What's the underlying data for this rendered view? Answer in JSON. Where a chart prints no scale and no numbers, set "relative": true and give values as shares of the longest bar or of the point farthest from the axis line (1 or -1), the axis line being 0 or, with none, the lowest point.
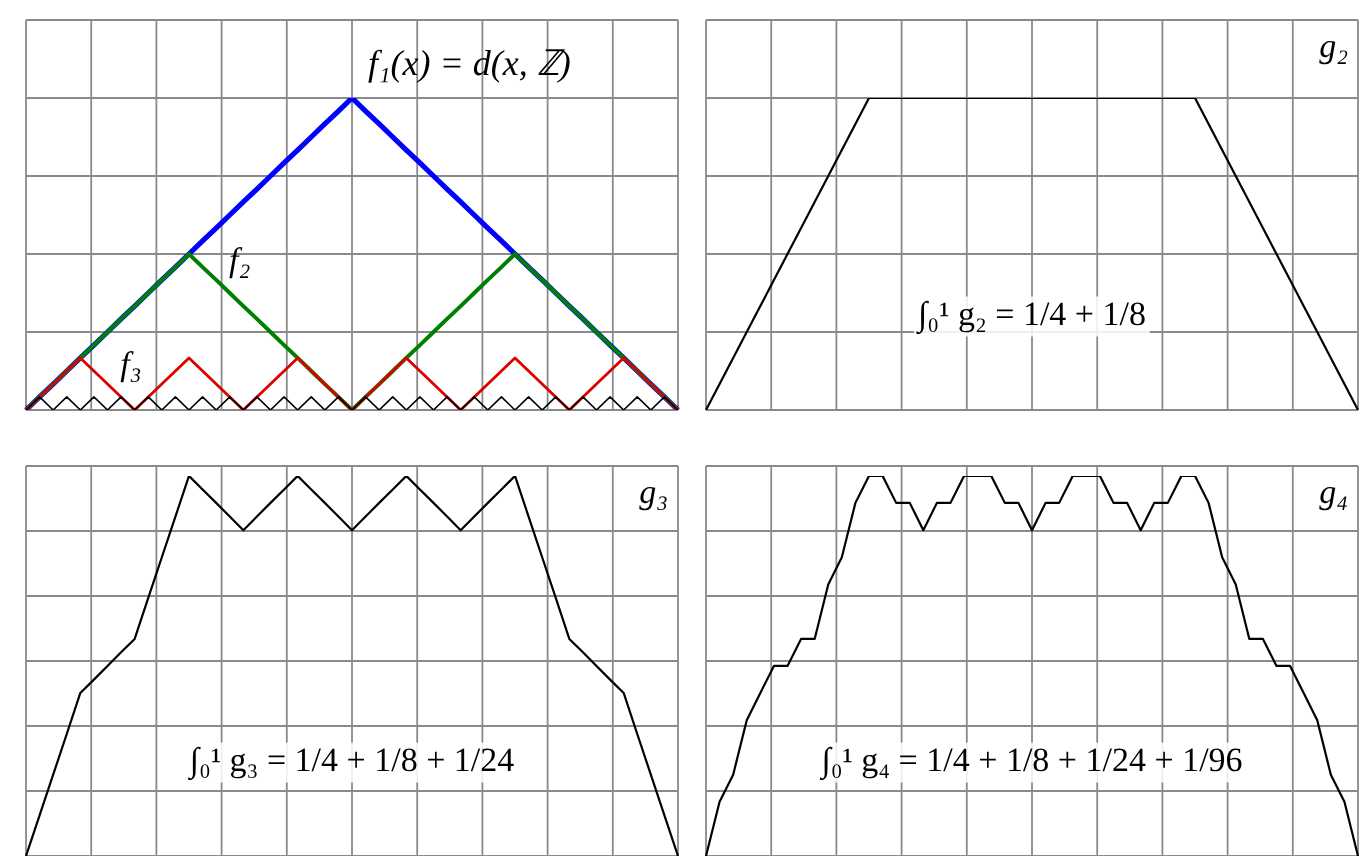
{
  "chart_data": [
    {
      "type": "line",
      "relative": true,
      "grid": true,
      "categories": [
        null,
        null,
        null,
        null,
        null,
        null,
        null,
        null,
        null,
        null,
        null,
        null,
        null,
        null,
        null,
        null,
        null,
        null,
        null,
        null,
        null,
        null,
        null,
        null,
        null,
        null,
        null,
        null,
        null,
        null,
        null,
        null,
        null,
        null,
        null,
        null,
        null,
        null,
        null,
        null,
        null,
        null,
        null,
        null,
        null,
        null,
        null,
        null,
        null
      ],
      "series": [
        {
          "name": "f₁(x) = d(x, ℤ)",
          "color": "#0000ff",
          "values": [
            0,
            0.042,
            0.083,
            0.125,
            0.167,
            0.208,
            0.25,
            0.292,
            0.333,
            0.375,
            0.417,
            0.458,
            0.5,
            0.542,
            0.583,
            0.625,
            0.667,
            0.708,
            0.75,
            0.792,
            0.833,
            0.875,
            0.917,
            0.958,
            1,
            0.958,
            0.917,
            0.875,
            0.833,
            0.792,
            0.75,
            0.708,
            0.667,
            0.625,
            0.583,
            0.542,
            0.5,
            0.458,
            0.417,
            0.375,
            0.333,
            0.292,
            0.25,
            0.208,
            0.167,
            0.125,
            0.083,
            0.042,
            0
          ]
        },
        {
          "name": "f₂",
          "color": "#008000",
          "values": [
            0,
            0.042,
            0.083,
            0.125,
            0.167,
            0.208,
            0.25,
            0.292,
            0.333,
            0.375,
            0.417,
            0.458,
            0.5,
            0.458,
            0.417,
            0.375,
            0.333,
            0.292,
            0.25,
            0.208,
            0.167,
            0.125,
            0.083,
            0.042,
            0,
            0.042,
            0.083,
            0.125,
            0.167,
            0.208,
            0.25,
            0.292,
            0.333,
            0.375,
            0.417,
            0.458,
            0.5,
            0.458,
            0.417,
            0.375,
            0.333,
            0.292,
            0.25,
            0.208,
            0.167,
            0.125,
            0.083,
            0.042,
            0
          ]
        },
        {
          "name": "f₃",
          "color": "#dd0000",
          "values": [
            0,
            0.042,
            0.083,
            0.125,
            0.167,
            0.125,
            0.083,
            0.042,
            0,
            0.042,
            0.083,
            0.125,
            0.167,
            0.125,
            0.083,
            0.042,
            0,
            0.042,
            0.083,
            0.125,
            0.167,
            0.125,
            0.083,
            0.042,
            0,
            0.042,
            0.083,
            0.125,
            0.167,
            0.125,
            0.083,
            0.042,
            0,
            0.042,
            0.083,
            0.125,
            0.167,
            0.125,
            0.083,
            0.042,
            0,
            0.042,
            0.083,
            0.125,
            0.167,
            0.125,
            0.083,
            0.042,
            0
          ]
        },
        {
          "color": "#000000",
          "values": [
            0,
            0.042,
            0,
            0.042,
            0,
            0.042,
            0,
            0.042,
            0,
            0.042,
            0,
            0.042,
            0,
            0.042,
            0,
            0.042,
            0,
            0.042,
            0,
            0.042,
            0,
            0.042,
            0,
            0.042,
            0,
            0.042,
            0,
            0.042,
            0,
            0.042,
            0,
            0.042,
            0,
            0.042,
            0,
            0.042,
            0,
            0.042,
            0,
            0.042,
            0,
            0.042,
            0,
            0.042,
            0,
            0.042,
            0,
            0.042,
            0
          ]
        }
      ]
    },
    {
      "type": "line",
      "relative": true,
      "grid": true,
      "annotations": [
        "∫₀¹ g₂ = 1/4 + 1/8"
      ],
      "categories": [
        null,
        null,
        null,
        null,
        null,
        null,
        null,
        null,
        null,
        null,
        null,
        null,
        null,
        null,
        null,
        null,
        null,
        null,
        null,
        null,
        null,
        null,
        null,
        null,
        null,
        null,
        null,
        null,
        null,
        null,
        null,
        null,
        null,
        null,
        null,
        null,
        null,
        null,
        null,
        null,
        null,
        null,
        null,
        null,
        null,
        null,
        null,
        null,
        null
      ],
      "series": [
        {
          "name": "g₂",
          "color": "#000000",
          "values": [
            0,
            0.083,
            0.167,
            0.25,
            0.333,
            0.417,
            0.5,
            0.583,
            0.667,
            0.75,
            0.833,
            0.917,
            1,
            1,
            1,
            1,
            1,
            1,
            1,
            1,
            1,
            1,
            1,
            1,
            1,
            1,
            1,
            1,
            1,
            1,
            1,
            1,
            1,
            1,
            1,
            1,
            1,
            0.917,
            0.833,
            0.75,
            0.667,
            0.583,
            0.5,
            0.417,
            0.333,
            0.25,
            0.167,
            0.083,
            0
          ]
        }
      ]
    },
    {
      "type": "line",
      "relative": true,
      "grid": true,
      "annotations": [
        "∫₀¹ g₃ = 1/4 + 1/8 + 1/24"
      ],
      "categories": [
        null,
        null,
        null,
        null,
        null,
        null,
        null,
        null,
        null,
        null,
        null,
        null,
        null,
        null,
        null,
        null,
        null,
        null,
        null,
        null,
        null,
        null,
        null,
        null,
        null,
        null,
        null,
        null,
        null,
        null,
        null,
        null,
        null,
        null,
        null,
        null,
        null,
        null,
        null,
        null,
        null,
        null,
        null,
        null,
        null,
        null,
        null,
        null,
        null
      ],
      "series": [
        {
          "name": "g₃",
          "color": "#000000",
          "values": [
            0,
            0.107,
            0.214,
            0.321,
            0.429,
            0.464,
            0.5,
            0.536,
            0.571,
            0.679,
            0.786,
            0.893,
            1,
            0.964,
            0.929,
            0.893,
            0.857,
            0.893,
            0.929,
            0.964,
            1,
            0.964,
            0.929,
            0.893,
            0.857,
            0.893,
            0.929,
            0.964,
            1,
            0.964,
            0.929,
            0.893,
            0.857,
            0.893,
            0.929,
            0.964,
            1,
            0.893,
            0.786,
            0.679,
            0.571,
            0.536,
            0.5,
            0.464,
            0.429,
            0.321,
            0.214,
            0.107,
            0
          ]
        }
      ]
    },
    {
      "type": "line",
      "relative": true,
      "grid": true,
      "annotations": [
        "∫₀¹ g₄ = 1/4 + 1/8 + 1/24 + 1/96"
      ],
      "categories": [
        null,
        null,
        null,
        null,
        null,
        null,
        null,
        null,
        null,
        null,
        null,
        null,
        null,
        null,
        null,
        null,
        null,
        null,
        null,
        null,
        null,
        null,
        null,
        null,
        null,
        null,
        null,
        null,
        null,
        null,
        null,
        null,
        null,
        null,
        null,
        null,
        null,
        null,
        null,
        null,
        null,
        null,
        null,
        null,
        null,
        null,
        null,
        null,
        null
      ],
      "series": [
        {
          "name": "g₄",
          "color": "#000000",
          "values": [
            0,
            0.143,
            0.214,
            0.357,
            0.429,
            0.5,
            0.5,
            0.571,
            0.571,
            0.714,
            0.786,
            0.929,
            1,
            1,
            0.929,
            0.929,
            0.857,
            0.929,
            0.929,
            1,
            1,
            1,
            0.929,
            0.929,
            0.857,
            0.929,
            0.929,
            1,
            1,
            1,
            0.929,
            0.929,
            0.857,
            0.929,
            0.929,
            1,
            1,
            0.929,
            0.786,
            0.714,
            0.571,
            0.571,
            0.5,
            0.5,
            0.429,
            0.357,
            0.214,
            0.143,
            0
          ]
        }
      ]
    }
  ]
}
